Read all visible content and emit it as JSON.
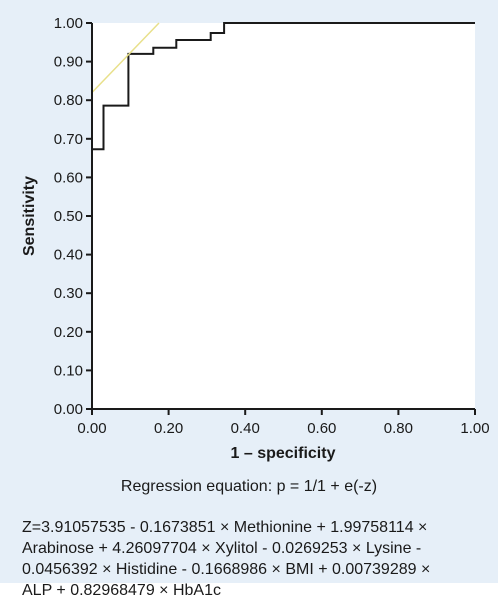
{
  "chart_data": {
    "type": "line",
    "xlabel": "1 – specificity",
    "ylabel": "Sensitivity",
    "xlim": [
      0,
      1
    ],
    "ylim": [
      0,
      1
    ],
    "x_ticks": [
      "0.00",
      "0.20",
      "0.40",
      "0.60",
      "0.80",
      "1.00"
    ],
    "y_ticks": [
      "0.00",
      "0.10",
      "0.20",
      "0.30",
      "0.40",
      "0.50",
      "0.60",
      "0.70",
      "0.80",
      "0.90",
      "1.00"
    ],
    "series": [
      {
        "color": "#1a1a1a",
        "x": [
          0,
          0,
          0.03,
          0.03,
          0.095,
          0.095,
          0.16,
          0.16,
          0.22,
          0.22,
          0.31,
          0.31,
          0.345,
          0.345,
          1.0
        ],
        "y": [
          0,
          0.673,
          0.673,
          0.786,
          0.786,
          0.92,
          0.92,
          0.936,
          0.936,
          0.956,
          0.956,
          0.974,
          0.974,
          1.0,
          1.0
        ]
      },
      {
        "color": "#e8e08a",
        "x": [
          0,
          0.175
        ],
        "y": [
          0.82,
          1.0
        ]
      }
    ]
  },
  "equation": {
    "title": "Regression equation: p = 1/1 + e(-z)",
    "body": "Z=3.91057535 - 0.1673851 × Methionine + 1.99758114 ×\nArabinose + 4.26097704 × Xylitol - 0.0269253 × Lysine -\n0.0456392 × Histidine - 0.1668986 × BMI + 0.00739289 ×\nALP + 0.82968479 × HbA1c"
  }
}
